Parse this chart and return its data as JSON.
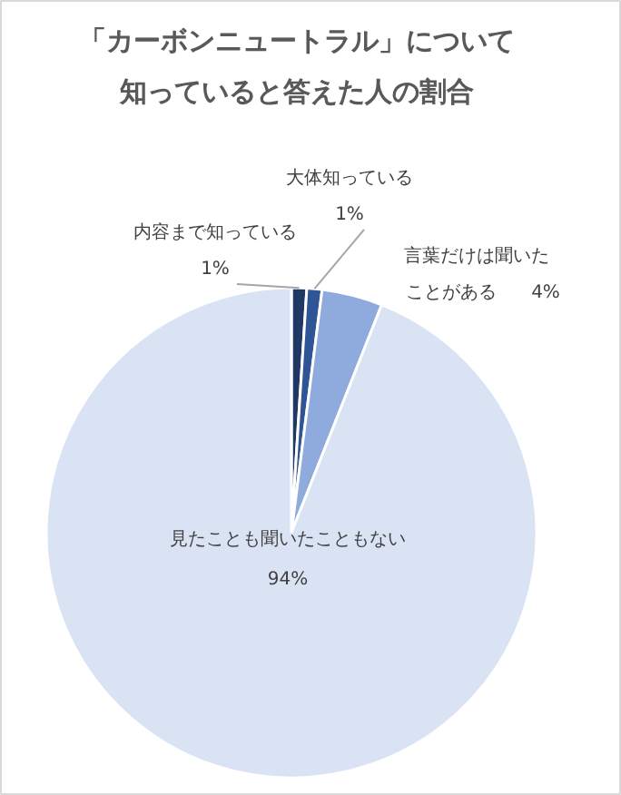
{
  "chart_data": {
    "type": "pie",
    "title": "「カーボンニュートラル」について知っていると答えた人の割合",
    "categories": [
      "内容まで知っている",
      "大体知っている",
      "言葉だけは聞いたことがある",
      "見たことも聞いたこともない"
    ],
    "values": [
      1,
      1,
      4,
      94
    ],
    "colors": [
      "#1f3864",
      "#2f5597",
      "#8faadc",
      "#dae3f3"
    ],
    "value_labels": [
      "1%",
      "1%",
      "4%",
      "94%"
    ]
  }
}
